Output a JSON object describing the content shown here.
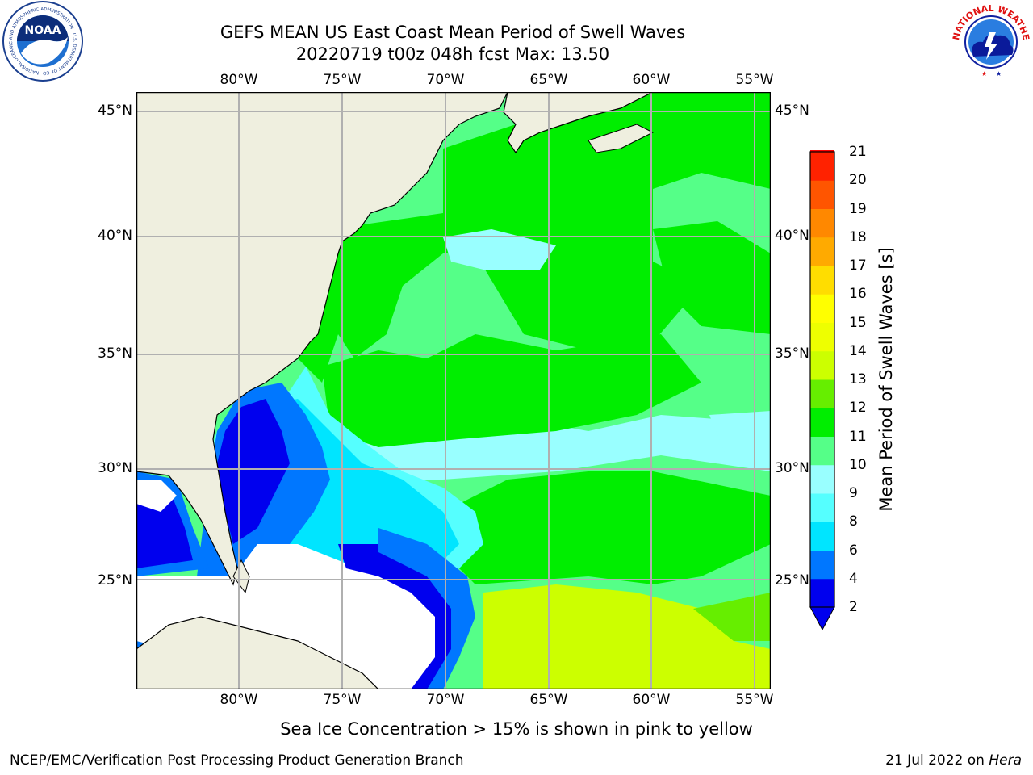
{
  "header": {
    "title_line1": "GEFS MEAN US East Coast Mean Period of Swell Waves",
    "title_line2": "20220719 t00z 048h fcst   Max: 13.50"
  },
  "map": {
    "lon_ticks": [
      "80°W",
      "75°W",
      "70°W",
      "65°W",
      "60°W",
      "55°W"
    ],
    "lat_ticks": [
      "45°N",
      "40°N",
      "35°N",
      "30°N",
      "25°N"
    ],
    "extent": {
      "lon_min": -85,
      "lon_max": -54.2,
      "lat_min": 20.5,
      "lat_max": 45.8
    },
    "colors": {
      "land": "#efefdf",
      "grid": "#b0b0b0",
      "coast": "#000000",
      "no_data": "#ffffff"
    }
  },
  "colorbar": {
    "label": "Mean Period of Swell Waves [s]",
    "ticks": [
      "21",
      "20",
      "19",
      "18",
      "17",
      "16",
      "15",
      "14",
      "13",
      "12",
      "11",
      "10",
      "9",
      "8",
      "6",
      "4",
      "2"
    ],
    "colors": [
      "#0000ee",
      "#0077ff",
      "#00e5ff",
      "#55ffff",
      "#99ffff",
      "#55ff88",
      "#00ee00",
      "#66ee00",
      "#ccff00",
      "#eeff00",
      "#ffff00",
      "#ffdd00",
      "#ffaa00",
      "#ff8800",
      "#ff5500",
      "#ff2200",
      "#ff0000"
    ],
    "extend": "min"
  },
  "footer": {
    "note": "Sea Ice Concentration > 15% is shown in pink to yellow",
    "credit": "NCEP/EMC/Verification Post Processing Product Generation Branch",
    "date": "21 Jul 2022 on ",
    "host": "Hera"
  },
  "logos": {
    "noaa_text": "NOAA",
    "noaa_ring": "NATIONAL OCEANIC AND ATMOSPHERIC ADMINISTRATION · U.S. DEPARTMENT OF COMMERCE",
    "nws_ring": "NATIONAL WEATHER SERVICE"
  }
}
